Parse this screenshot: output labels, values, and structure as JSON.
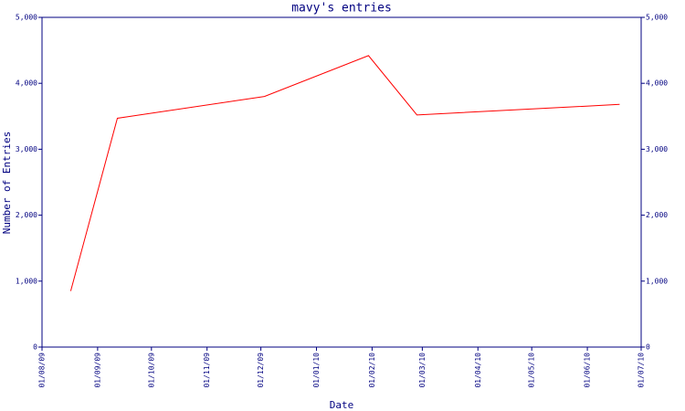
{
  "chart_data": {
    "type": "line",
    "title": "mavy's entries",
    "x_label": "Date",
    "y_label": "Number of Entries",
    "x": [
      "17/08/09",
      "12/09/09",
      "03/12/09",
      "30/01/10",
      "26/02/10",
      "19/06/10"
    ],
    "series": [
      {
        "color": "#ff0000",
        "values": [
          850,
          3470,
          3800,
          4420,
          3520,
          3680
        ]
      }
    ],
    "xlim": [
      "01/08/09",
      "01/07/10"
    ],
    "xticks": [
      "01/08/09",
      "01/09/09",
      "01/10/09",
      "01/11/09",
      "01/12/09",
      "01/01/10",
      "01/02/10",
      "01/03/10",
      "01/04/10",
      "01/05/10",
      "01/06/10",
      "01/07/10"
    ],
    "ylim": [
      0,
      5000
    ],
    "yticks": [
      0,
      {
        "value": 1000,
        "label": "1,000"
      },
      {
        "value": 2000,
        "label": "2,000"
      },
      {
        "value": 3000,
        "label": "3,000"
      },
      {
        "value": 4000,
        "label": "4,000"
      },
      {
        "value": 5000,
        "label": "5,000"
      }
    ],
    "axis_color": "#000080"
  }
}
